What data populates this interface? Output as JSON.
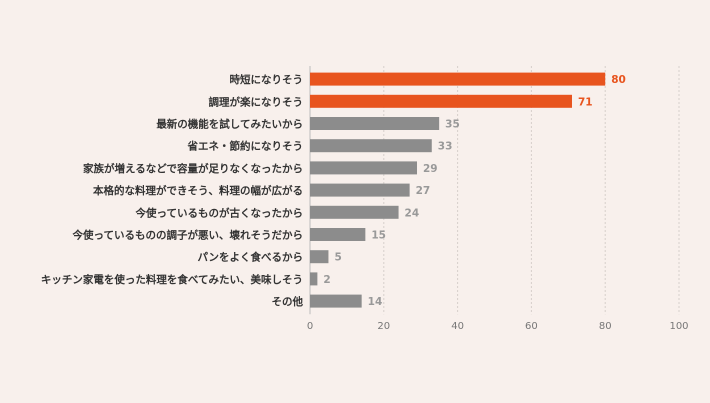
{
  "chart_data": {
    "type": "bar",
    "orientation": "horizontal",
    "categories": [
      "時短になりそう",
      "調理が楽になりそう",
      "最新の機能を試してみたいから",
      "省エネ・節約になりそう",
      "家族が増えるなどで容量が足りなくなったから",
      "本格的な料理ができそう、料理の幅が広がる",
      "今使っているものが古くなったから",
      "今使っているものの調子が悪い、壊れそうだから",
      "パンをよく食べるから",
      "キッチン家電を使った料理を食べてみたい、美味しそう",
      "その他"
    ],
    "values": [
      80,
      71,
      35,
      33,
      29,
      27,
      24,
      15,
      5,
      2,
      14
    ],
    "highlight": [
      true,
      true,
      false,
      false,
      false,
      false,
      false,
      false,
      false,
      false,
      false
    ],
    "xlim": [
      0,
      100
    ],
    "xticks": [
      "0",
      "20",
      "40",
      "60",
      "80",
      "100"
    ],
    "grid": "vertical dashed",
    "colors": {
      "highlight": "#e8541e",
      "normal": "#8c8c8c",
      "highlight_label": "#e8541e",
      "normal_label": "#999999"
    }
  }
}
